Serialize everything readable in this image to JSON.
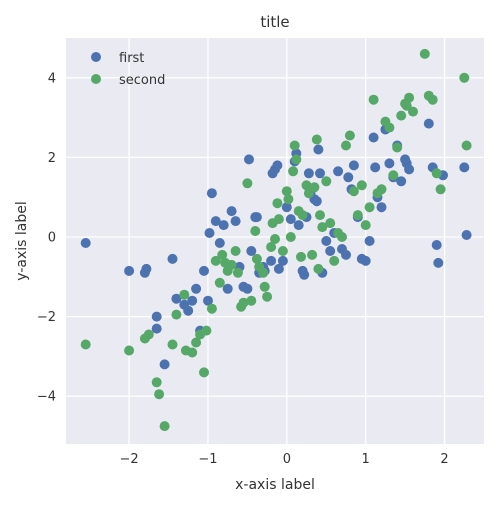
{
  "chart_data": {
    "type": "scatter",
    "title": "title",
    "xlabel": "x-axis label",
    "ylabel": "y-axis label",
    "xlim": [
      -2.8,
      2.5
    ],
    "ylim": [
      -5.2,
      5.0
    ],
    "xticks": [
      -2,
      -1,
      0,
      1,
      2
    ],
    "yticks": [
      -4,
      -2,
      0,
      2,
      4
    ],
    "tick_labels_x": [
      "−2",
      "−1",
      "0",
      "1",
      "2"
    ],
    "tick_labels_y": [
      "−4",
      "−2",
      "0",
      "2",
      "4"
    ],
    "grid": true,
    "background": "#EAEAF2",
    "legend": "top-left",
    "series": [
      {
        "name": "first",
        "color": "#4C72B0",
        "points": [
          [
            -2.55,
            -0.15
          ],
          [
            -2.0,
            -0.85
          ],
          [
            -1.8,
            -0.9
          ],
          [
            -1.78,
            -0.8
          ],
          [
            -1.65,
            -2.0
          ],
          [
            -1.65,
            -2.3
          ],
          [
            -1.55,
            -3.2
          ],
          [
            -1.45,
            -0.55
          ],
          [
            -1.4,
            -1.55
          ],
          [
            -1.3,
            -1.7
          ],
          [
            -1.25,
            -1.85
          ],
          [
            -1.2,
            -1.6
          ],
          [
            -1.15,
            -1.3
          ],
          [
            -1.1,
            -2.35
          ],
          [
            -1.05,
            -0.85
          ],
          [
            -1.0,
            -1.6
          ],
          [
            -0.98,
            0.1
          ],
          [
            -0.95,
            1.1
          ],
          [
            -0.9,
            0.4
          ],
          [
            -0.85,
            -0.15
          ],
          [
            -0.8,
            0.3
          ],
          [
            -0.75,
            -1.3
          ],
          [
            -0.7,
            0.65
          ],
          [
            -0.65,
            0.4
          ],
          [
            -0.6,
            -0.75
          ],
          [
            -0.55,
            -1.25
          ],
          [
            -0.5,
            -1.3
          ],
          [
            -0.48,
            1.95
          ],
          [
            -0.45,
            -0.35
          ],
          [
            -0.4,
            0.5
          ],
          [
            -0.38,
            0.5
          ],
          [
            -0.35,
            -0.9
          ],
          [
            -0.3,
            -0.75
          ],
          [
            -0.28,
            -0.85
          ],
          [
            -0.2,
            -0.6
          ],
          [
            -0.18,
            1.6
          ],
          [
            -0.15,
            1.7
          ],
          [
            -0.12,
            1.8
          ],
          [
            -0.1,
            -0.8
          ],
          [
            -0.05,
            -0.6
          ],
          [
            0.0,
            0.75
          ],
          [
            0.05,
            0.45
          ],
          [
            0.1,
            1.9
          ],
          [
            0.12,
            2.1
          ],
          [
            0.15,
            0.3
          ],
          [
            0.2,
            -0.85
          ],
          [
            0.22,
            -0.95
          ],
          [
            0.25,
            0.5
          ],
          [
            0.28,
            1.6
          ],
          [
            0.3,
            1.1
          ],
          [
            0.35,
            0.95
          ],
          [
            0.38,
            0.9
          ],
          [
            0.4,
            2.2
          ],
          [
            0.42,
            1.6
          ],
          [
            0.45,
            -0.9
          ],
          [
            0.5,
            -0.1
          ],
          [
            0.55,
            -0.35
          ],
          [
            0.6,
            0.1
          ],
          [
            0.65,
            1.65
          ],
          [
            0.7,
            -0.3
          ],
          [
            0.75,
            -0.45
          ],
          [
            0.78,
            1.5
          ],
          [
            0.82,
            1.2
          ],
          [
            0.85,
            1.8
          ],
          [
            0.9,
            0.5
          ],
          [
            0.95,
            -0.55
          ],
          [
            1.0,
            -0.6
          ],
          [
            1.05,
            -0.1
          ],
          [
            1.1,
            2.5
          ],
          [
            1.12,
            1.75
          ],
          [
            1.15,
            1.0
          ],
          [
            1.2,
            0.75
          ],
          [
            1.25,
            2.7
          ],
          [
            1.3,
            1.85
          ],
          [
            1.35,
            1.5
          ],
          [
            1.4,
            2.3
          ],
          [
            1.45,
            1.4
          ],
          [
            1.5,
            1.95
          ],
          [
            1.52,
            1.85
          ],
          [
            1.55,
            1.7
          ],
          [
            1.8,
            2.85
          ],
          [
            1.85,
            1.75
          ],
          [
            1.9,
            -0.2
          ],
          [
            1.92,
            -0.65
          ],
          [
            1.98,
            1.55
          ],
          [
            2.25,
            1.75
          ],
          [
            2.28,
            0.05
          ]
        ]
      },
      {
        "name": "second",
        "color": "#55A868",
        "points": [
          [
            -2.55,
            -2.7
          ],
          [
            -2.0,
            -2.85
          ],
          [
            -1.8,
            -2.55
          ],
          [
            -1.75,
            -2.45
          ],
          [
            -1.65,
            -3.65
          ],
          [
            -1.62,
            -3.95
          ],
          [
            -1.55,
            -4.75
          ],
          [
            -1.45,
            -2.7
          ],
          [
            -1.4,
            -1.95
          ],
          [
            -1.3,
            -1.45
          ],
          [
            -1.28,
            -2.85
          ],
          [
            -1.2,
            -2.9
          ],
          [
            -1.15,
            -2.65
          ],
          [
            -1.1,
            -2.45
          ],
          [
            -1.05,
            -3.4
          ],
          [
            -1.02,
            -2.35
          ],
          [
            -0.95,
            -1.8
          ],
          [
            -0.9,
            -0.6
          ],
          [
            -0.85,
            -1.15
          ],
          [
            -0.82,
            -0.45
          ],
          [
            -0.78,
            -0.65
          ],
          [
            -0.75,
            -0.85
          ],
          [
            -0.7,
            -0.7
          ],
          [
            -0.65,
            -0.35
          ],
          [
            -0.62,
            -0.9
          ],
          [
            -0.58,
            -1.75
          ],
          [
            -0.55,
            -1.65
          ],
          [
            -0.5,
            1.35
          ],
          [
            -0.45,
            -1.6
          ],
          [
            -0.4,
            0.15
          ],
          [
            -0.38,
            -0.55
          ],
          [
            -0.35,
            -0.75
          ],
          [
            -0.3,
            -0.9
          ],
          [
            -0.28,
            -1.25
          ],
          [
            -0.25,
            -1.5
          ],
          [
            -0.2,
            -0.25
          ],
          [
            -0.18,
            0.35
          ],
          [
            -0.15,
            -0.05
          ],
          [
            -0.12,
            0.85
          ],
          [
            -0.1,
            0.45
          ],
          [
            -0.05,
            -0.35
          ],
          [
            0.0,
            1.15
          ],
          [
            0.02,
            0.95
          ],
          [
            0.05,
            0.0
          ],
          [
            0.08,
            1.65
          ],
          [
            0.1,
            2.3
          ],
          [
            0.12,
            1.95
          ],
          [
            0.15,
            0.65
          ],
          [
            0.18,
            -0.5
          ],
          [
            0.2,
            0.55
          ],
          [
            0.25,
            1.3
          ],
          [
            0.28,
            1.1
          ],
          [
            0.32,
            -0.45
          ],
          [
            0.35,
            1.25
          ],
          [
            0.38,
            2.45
          ],
          [
            0.4,
            -0.8
          ],
          [
            0.42,
            0.55
          ],
          [
            0.45,
            0.25
          ],
          [
            0.5,
            1.4
          ],
          [
            0.55,
            0.35
          ],
          [
            0.6,
            -0.6
          ],
          [
            0.65,
            0.1
          ],
          [
            0.7,
            0.0
          ],
          [
            0.75,
            2.3
          ],
          [
            0.8,
            2.55
          ],
          [
            0.85,
            1.15
          ],
          [
            0.9,
            0.55
          ],
          [
            0.95,
            1.3
          ],
          [
            1.0,
            0.3
          ],
          [
            1.05,
            0.75
          ],
          [
            1.1,
            3.45
          ],
          [
            1.15,
            1.1
          ],
          [
            1.2,
            1.2
          ],
          [
            1.25,
            2.9
          ],
          [
            1.3,
            2.75
          ],
          [
            1.35,
            1.55
          ],
          [
            1.4,
            2.25
          ],
          [
            1.45,
            3.05
          ],
          [
            1.5,
            3.35
          ],
          [
            1.52,
            3.3
          ],
          [
            1.55,
            3.5
          ],
          [
            1.6,
            3.15
          ],
          [
            1.75,
            4.6
          ],
          [
            1.8,
            3.55
          ],
          [
            1.85,
            3.45
          ],
          [
            1.9,
            1.6
          ],
          [
            1.95,
            1.2
          ],
          [
            2.25,
            4.0
          ],
          [
            2.28,
            2.3
          ]
        ]
      }
    ]
  }
}
